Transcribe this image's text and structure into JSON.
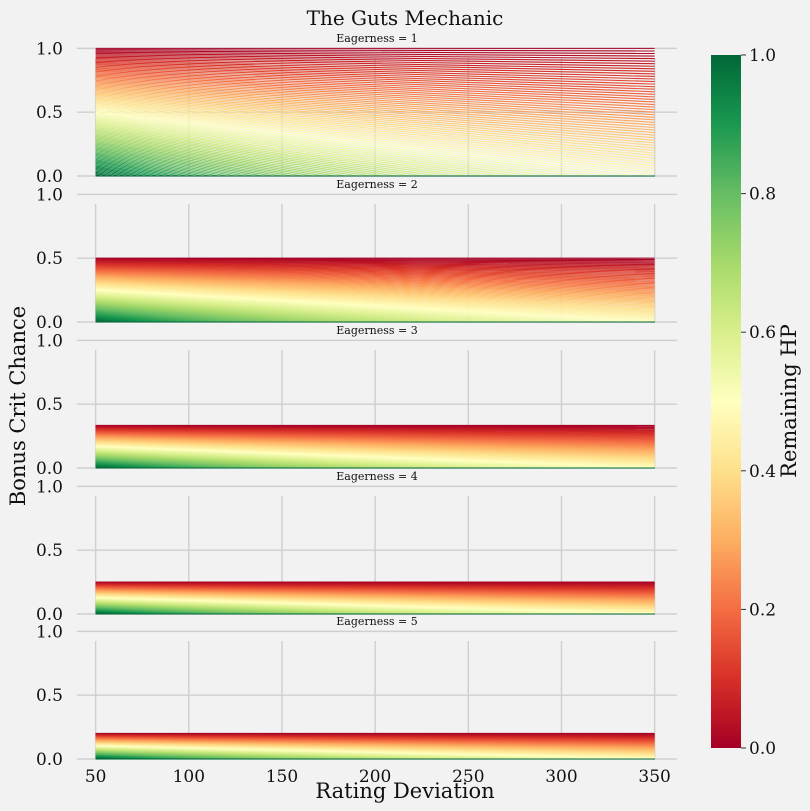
{
  "chart_data": {
    "type": "line",
    "title": "The Guts Mechanic",
    "xlabel": "Rating Deviation",
    "ylabel": "Bonus Crit Chance",
    "xlim": [
      40,
      362
    ],
    "ylim": [
      0,
      1.05
    ],
    "x_ticks": [
      "50",
      "100",
      "150",
      "200",
      "250",
      "300",
      "350"
    ],
    "y_ticks": [
      "0.0",
      "0.5",
      "1.0"
    ],
    "grid": true,
    "x": [
      50,
      350
    ],
    "hp_levels": [
      0,
      0.01,
      0.02,
      0.03,
      0.04,
      0.05,
      0.06,
      0.07,
      0.08,
      0.09,
      0.1,
      0.11,
      0.12,
      0.13,
      0.14,
      0.15,
      0.16,
      0.17,
      0.18,
      0.19,
      0.2,
      0.21,
      0.22,
      0.23,
      0.24,
      0.25,
      0.26,
      0.27,
      0.28,
      0.29,
      0.3,
      0.31,
      0.32,
      0.33,
      0.34,
      0.35,
      0.36,
      0.37,
      0.38,
      0.39,
      0.4,
      0.41,
      0.42,
      0.43,
      0.44,
      0.45,
      0.46,
      0.47,
      0.48,
      0.49,
      0.5,
      0.51,
      0.52,
      0.53,
      0.54,
      0.55,
      0.56,
      0.57,
      0.58,
      0.59,
      0.6,
      0.61,
      0.62,
      0.63,
      0.64,
      0.65,
      0.66,
      0.67,
      0.68,
      0.69,
      0.7,
      0.71,
      0.72,
      0.73,
      0.74,
      0.75,
      0.76,
      0.77,
      0.78,
      0.79,
      0.8,
      0.81,
      0.82,
      0.83,
      0.84,
      0.85,
      0.86,
      0.87,
      0.88,
      0.89,
      0.9,
      0.91,
      0.92,
      0.93,
      0.94,
      0.95,
      0.96,
      0.97,
      0.98,
      0.99,
      1.0
    ],
    "panels": [
      {
        "title": "Eagerness = 1",
        "eagerness": 1
      },
      {
        "title": "Eagerness = 2",
        "eagerness": 2
      },
      {
        "title": "Eagerness = 3",
        "eagerness": 3
      },
      {
        "title": "Eagerness = 4",
        "eagerness": 4
      },
      {
        "title": "Eagerness = 5",
        "eagerness": 5
      }
    ],
    "colorbar": {
      "label": "Remaining HP",
      "range": [
        0,
        1
      ],
      "ticks": [
        "0.0",
        "0.2",
        "0.4",
        "0.6",
        "0.8",
        "1.0"
      ],
      "colormap": "RdYlGn",
      "stops": [
        "#a50026",
        "#d73027",
        "#f46d43",
        "#fdae61",
        "#fee08b",
        "#ffffbf",
        "#d9ef8b",
        "#a6d96a",
        "#66bd63",
        "#1a9850",
        "#006837"
      ]
    }
  }
}
